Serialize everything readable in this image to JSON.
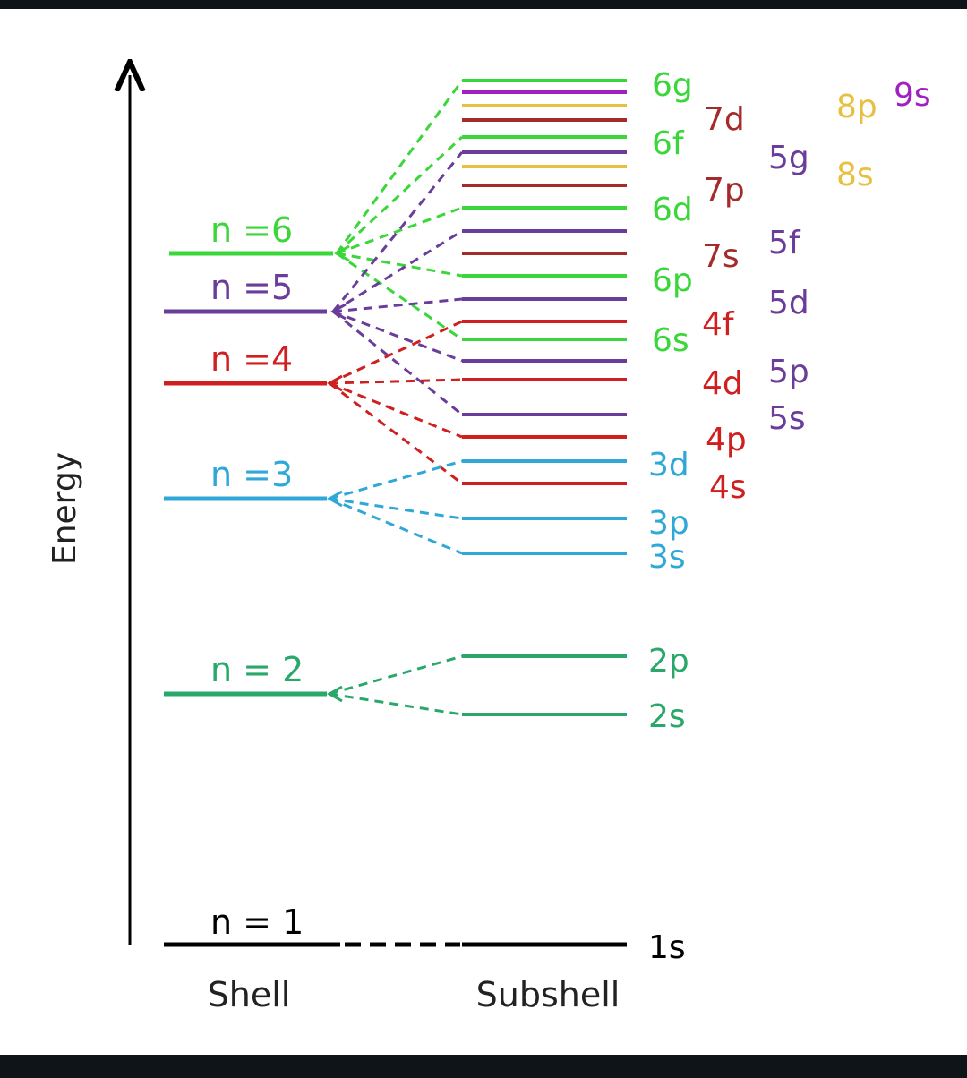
{
  "axis": {
    "label": "Energy",
    "shell_label": "Shell",
    "subshell_label": "Subshell"
  },
  "colors": {
    "n1": "#000000",
    "n2": "#2aa86b",
    "n3": "#2fa8d8",
    "n4": "#d01f1f",
    "n5": "#6a3d9a",
    "n6": "#3ad63a",
    "n7": "#a52a2a",
    "n8": "#e8c040",
    "n9": "#a020c0"
  },
  "shells": [
    {
      "label": "n = 1",
      "color_key": "n1"
    },
    {
      "label": "n = 2",
      "color_key": "n2"
    },
    {
      "label": "n =3",
      "color_key": "n3"
    },
    {
      "label": "n =4",
      "color_key": "n4"
    },
    {
      "label": "n =5",
      "color_key": "n5"
    },
    {
      "label": "n =6",
      "color_key": "n6"
    }
  ],
  "subshells": [
    {
      "label": "1s",
      "color_key": "n1"
    },
    {
      "label": "2s",
      "color_key": "n2"
    },
    {
      "label": "2p",
      "color_key": "n2"
    },
    {
      "label": "3s",
      "color_key": "n3"
    },
    {
      "label": "3p",
      "color_key": "n3"
    },
    {
      "label": "4s",
      "color_key": "n4"
    },
    {
      "label": "3d",
      "color_key": "n3"
    },
    {
      "label": "4p",
      "color_key": "n4"
    },
    {
      "label": "5s",
      "color_key": "n5"
    },
    {
      "label": "4d",
      "color_key": "n4"
    },
    {
      "label": "5p",
      "color_key": "n5"
    },
    {
      "label": "6s",
      "color_key": "n6"
    },
    {
      "label": "4f",
      "color_key": "n4"
    },
    {
      "label": "5d",
      "color_key": "n5"
    },
    {
      "label": "6p",
      "color_key": "n6"
    },
    {
      "label": "7s",
      "color_key": "n7"
    },
    {
      "label": "5f",
      "color_key": "n5"
    },
    {
      "label": "6d",
      "color_key": "n6"
    },
    {
      "label": "7p",
      "color_key": "n7"
    },
    {
      "label": "8s",
      "color_key": "n8"
    },
    {
      "label": "5g",
      "color_key": "n5"
    },
    {
      "label": "6f",
      "color_key": "n6"
    },
    {
      "label": "7d",
      "color_key": "n7"
    },
    {
      "label": "8p",
      "color_key": "n8"
    },
    {
      "label": "9s",
      "color_key": "n9"
    },
    {
      "label": "6g",
      "color_key": "n6"
    }
  ]
}
